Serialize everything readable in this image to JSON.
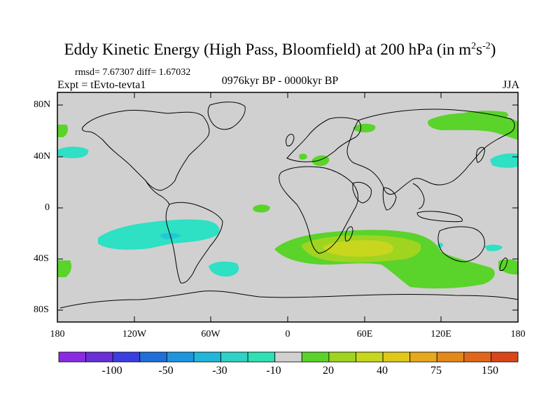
{
  "title": {
    "main": "Eddy Kinetic Energy (High Pass, Bloomfield) at 200 hPa (in m",
    "sup1": "2",
    "mid": "s",
    "sup2": "-2",
    "close": ")"
  },
  "stats": "rmsd= 7.67307 diff= 1.67032",
  "experiment": "Expt = tEvto-tevta1",
  "period": "0976kyr BP - 0000kyr BP",
  "season": "JJA",
  "y_axis_labels": [
    "80N",
    "40N",
    "0",
    "40S",
    "80S"
  ],
  "x_axis_labels": [
    "180",
    "120W",
    "60W",
    "0",
    "60E",
    "120E",
    "180"
  ],
  "colorbar": {
    "colors": [
      "#8a2be2",
      "#6a2fd6",
      "#3a3ee0",
      "#1f6fd8",
      "#1f95e0",
      "#20b6d8",
      "#2ed3c6",
      "#2ee0b4",
      "#d0d0d0",
      "#5ad32a",
      "#9fd420",
      "#c8d61e",
      "#e0c81a",
      "#e6a81c",
      "#e4881c",
      "#e0661c",
      "#d8461c"
    ],
    "labels": [
      "-100",
      "-50",
      "-30",
      "-10",
      "20",
      "40",
      "75",
      "150"
    ]
  },
  "map_colors": {
    "background": "#d0d0d0",
    "positive_low": "#5ad32a",
    "positive_mid": "#9fd420",
    "positive_high": "#c8d61e",
    "negative_low": "#2ee0c4",
    "negative_mid": "#20c8d8"
  }
}
